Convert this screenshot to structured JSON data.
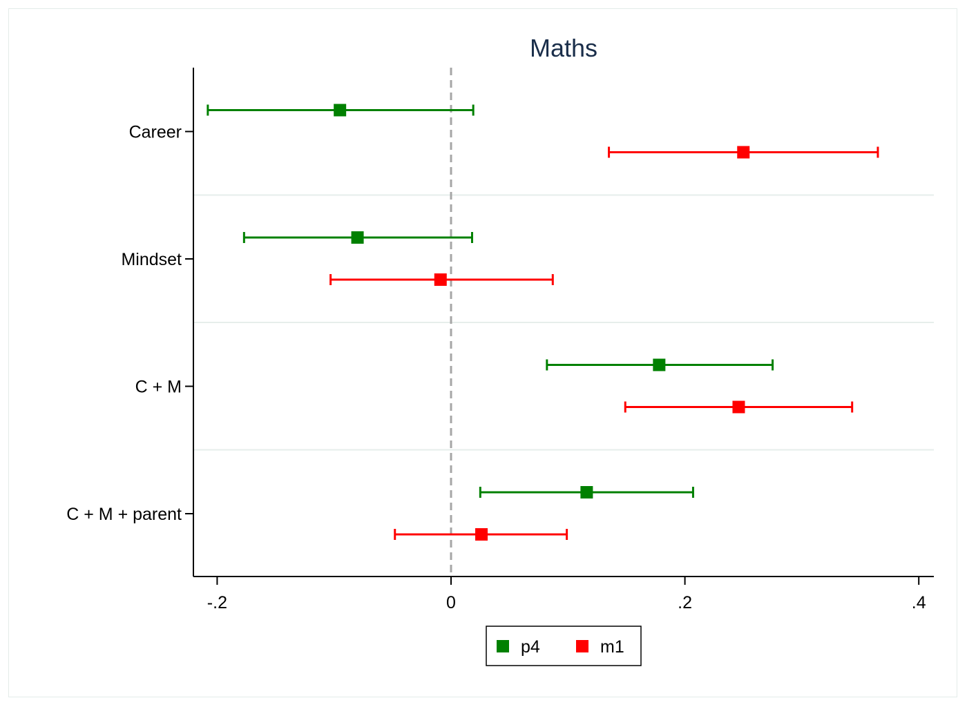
{
  "chart_data": {
    "type": "scatter",
    "title": "Maths",
    "xlabel": "",
    "ylabel": "",
    "xlim": [
      -0.215,
      0.41
    ],
    "x_ticks": [
      -0.2,
      0,
      0.2,
      0.4
    ],
    "x_tick_labels": [
      "-.2",
      "0",
      ".2",
      ".4"
    ],
    "reference_line_x": 0,
    "categories": [
      "Career",
      "Mindset",
      "C + M",
      "C + M + parent"
    ],
    "series": [
      {
        "name": "p4",
        "color": "#008000",
        "points": [
          {
            "category": "Career",
            "estimate": -0.095,
            "ci_low": -0.208,
            "ci_high": 0.019
          },
          {
            "category": "Mindset",
            "estimate": -0.08,
            "ci_low": -0.177,
            "ci_high": 0.018
          },
          {
            "category": "C + M",
            "estimate": 0.178,
            "ci_low": 0.082,
            "ci_high": 0.275
          },
          {
            "category": "C + M + parent",
            "estimate": 0.116,
            "ci_low": 0.025,
            "ci_high": 0.207
          }
        ]
      },
      {
        "name": "m1",
        "color": "#ff0000",
        "points": [
          {
            "category": "Career",
            "estimate": 0.25,
            "ci_low": 0.135,
            "ci_high": 0.365
          },
          {
            "category": "Mindset",
            "estimate": -0.009,
            "ci_low": -0.103,
            "ci_high": 0.087
          },
          {
            "category": "C + M",
            "estimate": 0.246,
            "ci_low": 0.149,
            "ci_high": 0.343
          },
          {
            "category": "C + M + parent",
            "estimate": 0.026,
            "ci_low": -0.048,
            "ci_high": 0.099
          }
        ]
      }
    ],
    "legend": {
      "position": "bottom",
      "entries": [
        "p4",
        "m1"
      ]
    },
    "colors": {
      "title": "#1a2e4a",
      "axis": "#000000",
      "reference_line": "#a6a6a6",
      "separator": "#e6eeeb"
    }
  }
}
